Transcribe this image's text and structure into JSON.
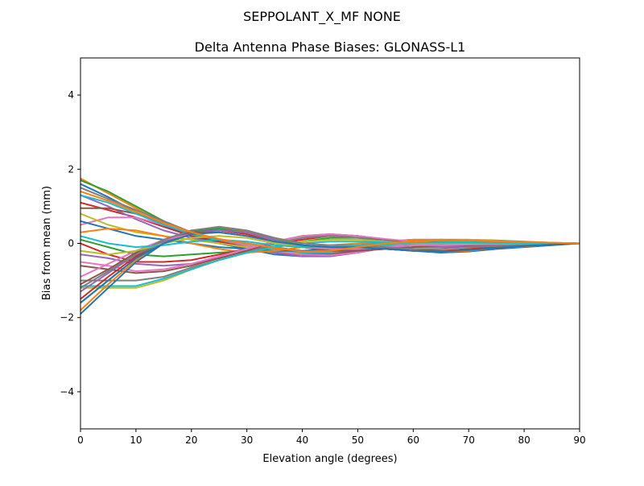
{
  "chart_data": {
    "type": "line",
    "suptitle": "SEPPOLANT_X_MF  NONE",
    "title": "Delta Antenna Phase Biases: GLONASS-L1",
    "xlabel": "Elevation angle (degrees)",
    "ylabel": "Bias from mean (mm)",
    "xlim": [
      0,
      90
    ],
    "ylim": [
      -5,
      5
    ],
    "xticks": [
      0,
      10,
      20,
      30,
      40,
      50,
      60,
      70,
      80,
      90
    ],
    "yticks": [
      -4,
      -2,
      0,
      2,
      4
    ],
    "ytick_labels": [
      "−4",
      "−2",
      "0",
      "2",
      "4"
    ],
    "grid": false,
    "legend": "none",
    "colors": [
      "#1f77b4",
      "#ff7f0e",
      "#2ca02c",
      "#d62728",
      "#9467bd",
      "#8c564b",
      "#e377c2",
      "#7f7f7f",
      "#bcbd22",
      "#17becf"
    ],
    "x": [
      0,
      5,
      10,
      15,
      20,
      25,
      30,
      35,
      40,
      45,
      50,
      55,
      60,
      65,
      70,
      75,
      80,
      85,
      90
    ],
    "series": [
      {
        "values": [
          1.6,
          1.25,
          0.85,
          0.5,
          0.2,
          0.0,
          -0.15,
          -0.3,
          -0.35,
          -0.3,
          -0.15,
          -0.05,
          0.02,
          0.05,
          0.05,
          0.04,
          0.03,
          0.01,
          0
        ]
      },
      {
        "values": [
          1.75,
          1.35,
          0.95,
          0.55,
          0.25,
          0.05,
          -0.1,
          -0.25,
          -0.3,
          -0.28,
          -0.15,
          -0.05,
          0.0,
          0.04,
          0.05,
          0.04,
          0.02,
          0.01,
          0
        ]
      },
      {
        "values": [
          1.7,
          1.4,
          1.0,
          0.6,
          0.3,
          0.1,
          -0.05,
          -0.2,
          -0.25,
          -0.2,
          -0.1,
          0.0,
          0.05,
          0.08,
          0.07,
          0.05,
          0.03,
          0.01,
          0
        ]
      },
      {
        "values": [
          1.1,
          0.9,
          0.7,
          0.45,
          0.2,
          0.05,
          -0.1,
          -0.2,
          -0.3,
          -0.3,
          -0.2,
          -0.1,
          0.0,
          0.05,
          0.06,
          0.04,
          0.02,
          0.01,
          0
        ]
      },
      {
        "values": [
          1.3,
          1.0,
          0.65,
          0.35,
          0.15,
          0.0,
          -0.1,
          -0.25,
          -0.35,
          -0.35,
          -0.25,
          -0.12,
          -0.05,
          0.0,
          0.02,
          0.02,
          0.01,
          0.0,
          0
        ]
      },
      {
        "values": [
          0.95,
          0.95,
          0.8,
          0.55,
          0.3,
          0.1,
          -0.05,
          -0.2,
          -0.3,
          -0.3,
          -0.2,
          -0.1,
          -0.02,
          0.02,
          0.03,
          0.02,
          0.01,
          0.0,
          0
        ]
      },
      {
        "values": [
          0.5,
          0.7,
          0.7,
          0.5,
          0.3,
          0.1,
          -0.05,
          -0.2,
          -0.3,
          -0.32,
          -0.25,
          -0.1,
          0.0,
          0.05,
          0.05,
          0.04,
          0.02,
          0.01,
          0
        ]
      },
      {
        "values": [
          1.5,
          1.2,
          0.9,
          0.6,
          0.3,
          0.1,
          0.0,
          -0.1,
          -0.2,
          -0.2,
          -0.1,
          0.0,
          0.05,
          0.1,
          0.1,
          0.08,
          0.05,
          0.02,
          0
        ]
      },
      {
        "values": [
          0.8,
          0.5,
          0.3,
          0.2,
          0.1,
          0.0,
          -0.1,
          -0.2,
          -0.25,
          -0.25,
          -0.15,
          -0.05,
          0.05,
          0.1,
          0.1,
          0.07,
          0.04,
          0.02,
          0
        ]
      },
      {
        "values": [
          1.3,
          1.1,
          0.8,
          0.5,
          0.25,
          0.1,
          0.0,
          -0.15,
          -0.25,
          -0.25,
          -0.15,
          -0.05,
          0.02,
          0.05,
          0.05,
          0.04,
          0.02,
          0.01,
          0
        ]
      },
      {
        "values": [
          0.6,
          0.4,
          0.2,
          0.1,
          0.0,
          -0.1,
          -0.15,
          -0.2,
          -0.2,
          -0.15,
          -0.05,
          0.05,
          0.1,
          0.1,
          0.08,
          0.05,
          0.03,
          0.01,
          0
        ]
      },
      {
        "values": [
          0.3,
          0.4,
          0.35,
          0.2,
          0.0,
          -0.15,
          -0.25,
          -0.2,
          -0.1,
          -0.05,
          0.0,
          0.05,
          0.1,
          0.1,
          0.08,
          0.05,
          0.03,
          0.01,
          0
        ]
      },
      {
        "values": [
          0.1,
          -0.1,
          -0.3,
          -0.35,
          -0.3,
          -0.25,
          -0.2,
          -0.1,
          0.05,
          0.15,
          0.15,
          0.1,
          0.05,
          0.0,
          0.0,
          0.0,
          0.0,
          0.0,
          0
        ]
      },
      {
        "values": [
          0.0,
          -0.3,
          -0.5,
          -0.5,
          -0.45,
          -0.3,
          -0.15,
          0.0,
          0.1,
          0.2,
          0.2,
          0.1,
          0.05,
          0.02,
          0.0,
          0.0,
          0.0,
          0.0,
          0
        ]
      },
      {
        "values": [
          -0.3,
          -0.4,
          -0.55,
          -0.6,
          -0.55,
          -0.4,
          -0.2,
          0.0,
          0.15,
          0.25,
          0.2,
          0.1,
          0.05,
          0.0,
          0.0,
          0.0,
          0.0,
          0.0,
          0
        ]
      },
      {
        "values": [
          -0.6,
          -0.7,
          -0.8,
          -0.75,
          -0.6,
          -0.4,
          -0.2,
          0.05,
          0.2,
          0.25,
          0.2,
          0.1,
          0.0,
          -0.05,
          -0.05,
          -0.03,
          -0.02,
          -0.01,
          0
        ]
      },
      {
        "values": [
          -0.5,
          -0.6,
          -0.75,
          -0.7,
          -0.55,
          -0.35,
          -0.15,
          0.05,
          0.2,
          0.25,
          0.2,
          0.12,
          0.05,
          0.0,
          -0.02,
          -0.02,
          -0.01,
          0.0,
          0
        ]
      },
      {
        "values": [
          -1.0,
          -1.0,
          -1.0,
          -0.9,
          -0.65,
          -0.45,
          -0.25,
          0.0,
          0.15,
          0.2,
          0.15,
          0.05,
          -0.05,
          -0.1,
          -0.1,
          -0.08,
          -0.05,
          -0.02,
          0
        ]
      },
      {
        "values": [
          -1.2,
          -1.2,
          -1.2,
          -1.0,
          -0.7,
          -0.45,
          -0.25,
          -0.1,
          0.05,
          0.1,
          0.1,
          0.05,
          0.0,
          -0.05,
          -0.05,
          -0.04,
          -0.02,
          -0.01,
          0
        ]
      },
      {
        "values": [
          -1.15,
          -1.15,
          -1.15,
          -0.95,
          -0.7,
          -0.45,
          -0.25,
          -0.1,
          0.0,
          0.05,
          0.05,
          0.03,
          0.0,
          -0.02,
          -0.02,
          -0.02,
          -0.01,
          0.0,
          0
        ]
      },
      {
        "values": [
          -1.9,
          -1.2,
          -0.5,
          0.0,
          0.3,
          0.4,
          0.3,
          0.1,
          -0.1,
          -0.15,
          -0.1,
          -0.15,
          -0.2,
          -0.25,
          -0.22,
          -0.15,
          -0.1,
          -0.05,
          0
        ]
      },
      {
        "values": [
          -1.8,
          -1.1,
          -0.45,
          0.05,
          0.35,
          0.42,
          0.32,
          0.12,
          -0.05,
          -0.1,
          -0.1,
          -0.15,
          -0.2,
          -0.22,
          -0.2,
          -0.12,
          -0.08,
          -0.03,
          0
        ]
      },
      {
        "values": [
          -1.6,
          -1.0,
          -0.4,
          0.1,
          0.35,
          0.4,
          0.3,
          0.1,
          -0.05,
          -0.1,
          -0.1,
          -0.12,
          -0.15,
          -0.2,
          -0.18,
          -0.12,
          -0.07,
          -0.03,
          0
        ]
      },
      {
        "values": [
          -1.5,
          -0.9,
          -0.35,
          0.1,
          0.3,
          0.35,
          0.25,
          0.05,
          -0.1,
          -0.15,
          -0.15,
          -0.15,
          -0.2,
          -0.2,
          -0.15,
          -0.1,
          -0.05,
          -0.02,
          0
        ]
      },
      {
        "values": [
          -1.3,
          -0.8,
          -0.3,
          0.05,
          0.3,
          0.35,
          0.3,
          0.1,
          -0.1,
          -0.2,
          -0.2,
          -0.15,
          -0.1,
          -0.1,
          -0.08,
          -0.05,
          -0.03,
          -0.01,
          0
        ]
      },
      {
        "values": [
          -1.1,
          -0.7,
          -0.25,
          0.1,
          0.3,
          0.3,
          0.2,
          0.05,
          -0.1,
          -0.2,
          -0.2,
          -0.15,
          -0.1,
          -0.05,
          -0.05,
          -0.03,
          -0.02,
          -0.01,
          0
        ]
      },
      {
        "values": [
          -0.9,
          -0.55,
          -0.2,
          0.1,
          0.25,
          0.3,
          0.2,
          0.05,
          -0.1,
          -0.15,
          -0.15,
          -0.1,
          -0.05,
          -0.05,
          -0.03,
          -0.02,
          -0.01,
          0.0,
          0
        ]
      },
      {
        "values": [
          -1.2,
          -0.75,
          -0.3,
          0.1,
          0.35,
          0.45,
          0.35,
          0.15,
          0.0,
          -0.05,
          -0.05,
          -0.1,
          -0.15,
          -0.15,
          -0.1,
          -0.07,
          -0.04,
          -0.02,
          0
        ]
      },
      {
        "values": [
          -0.2,
          -0.3,
          -0.2,
          0.0,
          0.15,
          0.2,
          0.15,
          0.0,
          -0.1,
          -0.1,
          -0.05,
          0.0,
          0.0,
          0.0,
          0.0,
          0.0,
          0.0,
          0.0,
          0
        ]
      },
      {
        "values": [
          0.2,
          0.0,
          -0.1,
          -0.05,
          0.05,
          0.1,
          0.05,
          -0.05,
          -0.1,
          -0.1,
          -0.05,
          0.0,
          0.02,
          0.02,
          0.02,
          0.01,
          0.01,
          0.0,
          0
        ]
      },
      {
        "values": [
          -1.6,
          -1.0,
          -0.4,
          0.0,
          0.25,
          0.3,
          0.2,
          0.05,
          -0.05,
          -0.1,
          -0.1,
          -0.15,
          -0.2,
          -0.22,
          -0.18,
          -0.12,
          -0.07,
          -0.03,
          0
        ]
      },
      {
        "values": [
          1.4,
          1.15,
          0.85,
          0.55,
          0.3,
          0.12,
          0.0,
          -0.12,
          -0.22,
          -0.2,
          -0.1,
          0.0,
          0.05,
          0.08,
          0.08,
          0.06,
          0.04,
          0.02,
          0
        ]
      }
    ]
  }
}
